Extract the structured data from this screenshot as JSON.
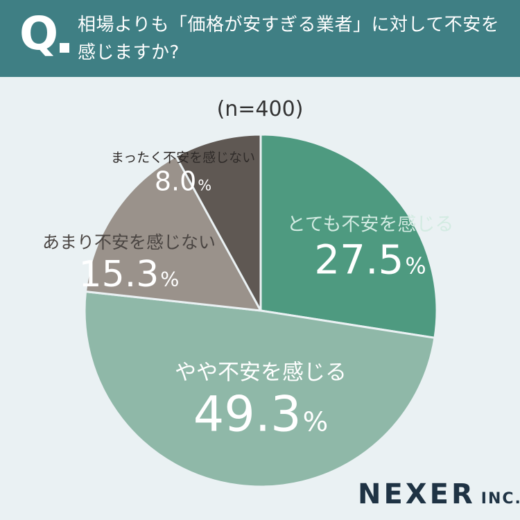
{
  "header": {
    "q_mark": "Q",
    "question": "相場よりも「価格が安すぎる業者」に対して不安を感じますか?",
    "background": "#3f7f84"
  },
  "sample_label": "(n=400)",
  "logo": {
    "name": "NEXER",
    "suffix": "INC."
  },
  "chart_data": {
    "type": "pie",
    "title": "相場よりも「価格が安すぎる業者」に対して不安を感じますか?",
    "start_angle_deg": 0,
    "direction": "clockwise",
    "slices": [
      {
        "label": "とても不安を感じる",
        "value": 27.5,
        "display": "27.5",
        "color": "#4e9a80",
        "label_color": "#ffffff",
        "name_color": "#d3ebe2"
      },
      {
        "label": "やや不安を感じる",
        "value": 49.3,
        "display": "49.3",
        "color": "#8fb8a8",
        "label_color": "#ffffff",
        "name_color": "#ffffff"
      },
      {
        "label": "あまり不安を感じない",
        "value": 15.3,
        "display": "15.3",
        "color": "#9a928b",
        "label_color": "#ffffff",
        "name_color": "#4a4542"
      },
      {
        "label": "まったく不安を感じない",
        "value": 8.0,
        "display": "8.0",
        "color": "#5f5853",
        "label_color": "#ffffff",
        "name_color": "#2f2b29"
      }
    ],
    "unit": "%",
    "sample_size": "n=400"
  }
}
